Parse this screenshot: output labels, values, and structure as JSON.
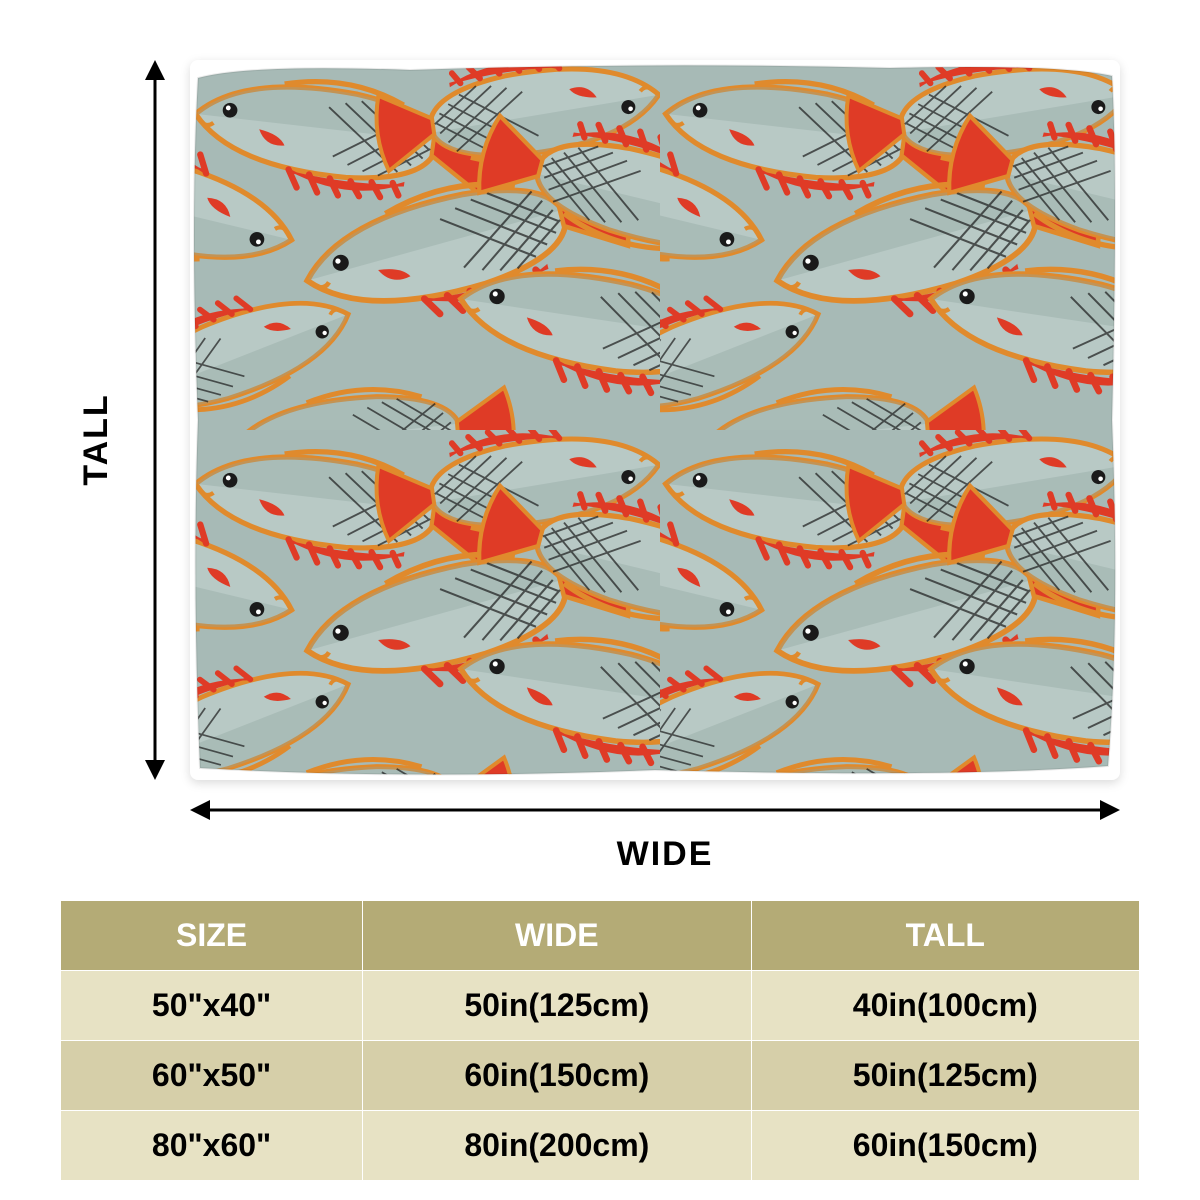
{
  "dimension_labels": {
    "tall": "TALL",
    "wide": "WIDE"
  },
  "blanket_pattern": {
    "bg_color": "#a7bab6",
    "fish_body_light": "#b8c9c5",
    "fish_body_dark": "#8ba39e",
    "outline_color": "#e08a2c",
    "accent_red": "#df3b26",
    "net_color": "#1a1a1a"
  },
  "arrow_color": "#000000",
  "size_table": {
    "header_bg": "#b4ab76",
    "row_bg_1": "#e7e2c4",
    "row_bg_2": "#d6cfa9",
    "columns": [
      "SIZE",
      "WIDE",
      "TALL"
    ],
    "rows": [
      [
        "50\"x40\"",
        "50in(125cm)",
        "40in(100cm)"
      ],
      [
        "60\"x50\"",
        "60in(150cm)",
        "50in(125cm)"
      ],
      [
        "80\"x60\"",
        "80in(200cm)",
        "60in(150cm)"
      ]
    ],
    "col_widths_pct": [
      28,
      36,
      36
    ]
  }
}
